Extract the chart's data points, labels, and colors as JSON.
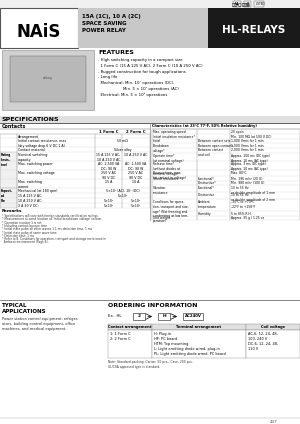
{
  "title_product": "15A (1C), 10 A (2C)\nSPACE SAVING\nPOWER RELAY",
  "title_series": "HL-RELAYS",
  "brand": "NAiS",
  "features_title": "FEATURES",
  "features": [
    "- High switching capacity in a compact size",
    "  1 Form C (15 A 125 V AC), 2 Form C (10 A 250 V AC)",
    "- Rugged construction for tough applications",
    "- Long life",
    "  Mechanical: Min. 10⁷ operations (DC),",
    "                    Min. 5 × 10⁷ operations (AC)",
    "  Electrical: Min. 5 × 10⁵ operations"
  ],
  "specs_title": "SPECIFICATIONS",
  "contacts_title": "Contacts",
  "char_title": "Characteristics (at 23°C 77°F, 50% Relative humidity)",
  "remarks_title": "Remarks",
  "remarks": [
    "* Specifications will vary with foreign standards certification ratings.",
    "* Measurement at same location as 'Initial breakdown voltage' section",
    "* Operation number 1 is not",
    "* Including contact bounce time",
    "* Initial state pulse all other waves 1.1 ms detection time, 1 ms",
    "* Initial state pulse of same wave time",
    "* Detection time: 1 ms",
    "* Refer to 8. Conditions for operation, transport and storage mentioned in",
    "  Ambient environment (Page 8)."
  ],
  "typical_title": "TYPICAL\nAPPLICATIONS",
  "typical_text": "Power station control equipment, refriger-\nators, building control equipment, office\nmachines, and medical equipment.",
  "ordering_title": "ORDERING INFORMATION",
  "ordering_table_headers": [
    "Contact arrangement",
    "Terminal arrangement",
    "Coil voltage"
  ],
  "note": "Note: Standard packing: Carton: 50 pcs., Case: 200 pcs.\nUL/CSA approved type is standard.",
  "page_num": "437",
  "bg_color": "#ffffff",
  "header_dark": "#1e1e1e",
  "header_gray": "#c0c0c0",
  "specs_bg": "#e8e8e8"
}
